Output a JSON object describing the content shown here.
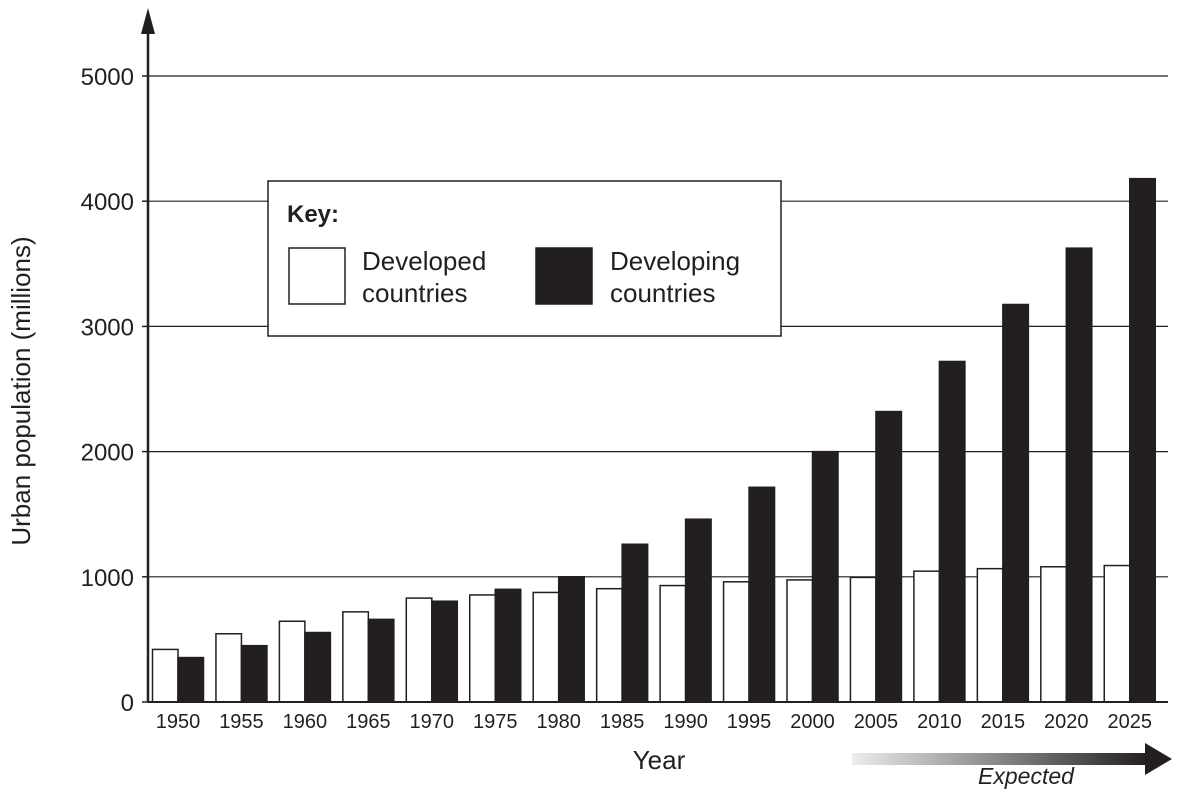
{
  "chart_data": {
    "type": "bar",
    "ylabel": "Urban population (millions)",
    "xlabel": "Year",
    "ylim": [
      0,
      5000
    ],
    "yticks": [
      0,
      1000,
      2000,
      3000,
      4000,
      5000
    ],
    "grid": "horizontal",
    "categories": [
      "1950",
      "1955",
      "1960",
      "1965",
      "1970",
      "1975",
      "1980",
      "1985",
      "1990",
      "1995",
      "2000",
      "2005",
      "2010",
      "2015",
      "2020",
      "2025"
    ],
    "series": [
      {
        "name": "Developed countries",
        "fill": "#ffffff",
        "values": [
          420,
          545,
          645,
          720,
          830,
          855,
          875,
          905,
          930,
          960,
          975,
          995,
          1045,
          1065,
          1080,
          1090
        ]
      },
      {
        "name": "Developing countries",
        "fill": "#231f20",
        "values": [
          355,
          450,
          555,
          660,
          805,
          900,
          1000,
          1260,
          1460,
          1715,
          2000,
          2320,
          2720,
          3175,
          3625,
          4180
        ]
      }
    ],
    "legend": {
      "title": "Key:",
      "placement": "upper-left",
      "items": [
        {
          "line1": "Developed",
          "line2": "countries",
          "fill": "#ffffff"
        },
        {
          "line1": "Developing",
          "line2": "countries",
          "fill": "#231f20"
        }
      ]
    },
    "annotation": {
      "text": "Expected",
      "from": "2005",
      "to": "2025"
    }
  }
}
